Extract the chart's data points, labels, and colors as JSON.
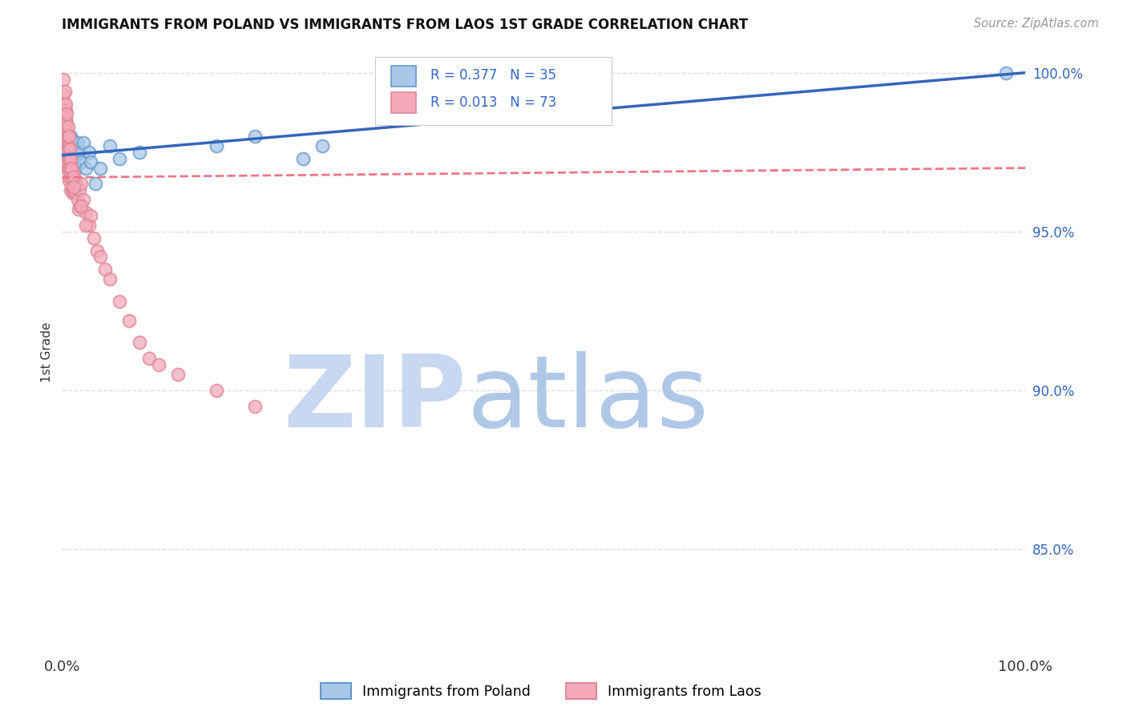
{
  "title": "IMMIGRANTS FROM POLAND VS IMMIGRANTS FROM LAOS 1ST GRADE CORRELATION CHART",
  "source": "Source: ZipAtlas.com",
  "ylabel": "1st Grade",
  "xlim": [
    0.0,
    1.0
  ],
  "ylim": [
    0.818,
    1.006
  ],
  "ytick_vals": [
    0.85,
    0.9,
    0.95,
    1.0
  ],
  "ytick_labels": [
    "85.0%",
    "90.0%",
    "95.0%",
    "100.0%"
  ],
  "legend_R1": "R = 0.377",
  "legend_N1": "N = 35",
  "legend_R2": "R = 0.013",
  "legend_N2": "N = 73",
  "poland_fill": "#a8c8e8",
  "poland_edge": "#6699cc",
  "laos_fill": "#f4aabb",
  "laos_edge": "#dd8899",
  "poland_line": "#3366bb",
  "laos_line": "#ee7788",
  "watermark_zip_color": "#c8d8f0",
  "watermark_atlas_color": "#b0c8e8",
  "poland_x": [
    0.002,
    0.003,
    0.004,
    0.004,
    0.005,
    0.005,
    0.006,
    0.007,
    0.007,
    0.008,
    0.009,
    0.009,
    0.01,
    0.011,
    0.012,
    0.013,
    0.014,
    0.015,
    0.016,
    0.018,
    0.02,
    0.022,
    0.025,
    0.028,
    0.03,
    0.035,
    0.04,
    0.05,
    0.06,
    0.08,
    0.16,
    0.2,
    0.25,
    0.27,
    0.98
  ],
  "poland_y": [
    0.988,
    0.982,
    0.985,
    0.979,
    0.976,
    0.981,
    0.974,
    0.978,
    0.972,
    0.976,
    0.98,
    0.973,
    0.979,
    0.967,
    0.972,
    0.978,
    0.97,
    0.974,
    0.978,
    0.975,
    0.972,
    0.978,
    0.97,
    0.975,
    0.972,
    0.965,
    0.97,
    0.977,
    0.973,
    0.975,
    0.977,
    0.98,
    0.973,
    0.977,
    1.0
  ],
  "laos_x": [
    0.001,
    0.001,
    0.002,
    0.002,
    0.002,
    0.003,
    0.003,
    0.003,
    0.004,
    0.004,
    0.004,
    0.005,
    0.005,
    0.005,
    0.006,
    0.006,
    0.006,
    0.007,
    0.007,
    0.007,
    0.008,
    0.008,
    0.009,
    0.009,
    0.01,
    0.01,
    0.011,
    0.011,
    0.012,
    0.012,
    0.013,
    0.014,
    0.015,
    0.016,
    0.017,
    0.018,
    0.019,
    0.02,
    0.022,
    0.025,
    0.028,
    0.03,
    0.033,
    0.036,
    0.04,
    0.045,
    0.05,
    0.06,
    0.07,
    0.08,
    0.09,
    0.1,
    0.02,
    0.025,
    0.12,
    0.16,
    0.2,
    0.004,
    0.005,
    0.006,
    0.007,
    0.008,
    0.009,
    0.003,
    0.004,
    0.005,
    0.006,
    0.007,
    0.008,
    0.009,
    0.01,
    0.011,
    0.012
  ],
  "laos_y": [
    0.998,
    0.993,
    0.99,
    0.985,
    0.982,
    0.986,
    0.981,
    0.978,
    0.983,
    0.979,
    0.975,
    0.98,
    0.976,
    0.972,
    0.977,
    0.973,
    0.969,
    0.974,
    0.97,
    0.966,
    0.971,
    0.967,
    0.968,
    0.963,
    0.97,
    0.964,
    0.967,
    0.962,
    0.968,
    0.963,
    0.966,
    0.962,
    0.965,
    0.96,
    0.957,
    0.963,
    0.958,
    0.965,
    0.96,
    0.956,
    0.952,
    0.955,
    0.948,
    0.944,
    0.942,
    0.938,
    0.935,
    0.928,
    0.922,
    0.915,
    0.91,
    0.908,
    0.958,
    0.952,
    0.905,
    0.9,
    0.895,
    0.988,
    0.984,
    0.98,
    0.977,
    0.973,
    0.97,
    0.994,
    0.99,
    0.987,
    0.983,
    0.98,
    0.976,
    0.973,
    0.97,
    0.967,
    0.964
  ]
}
